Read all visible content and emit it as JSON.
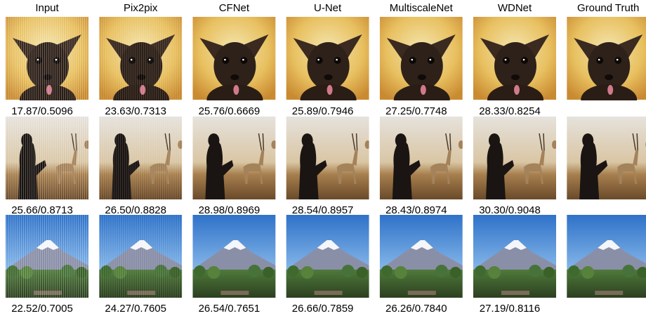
{
  "columns": [
    "Input",
    "Pix2pix",
    "CFNet",
    "U-Net",
    "MultiscaleNet",
    "WDNet",
    "Ground Truth"
  ],
  "rows": [
    {
      "scores": [
        "17.87/0.5096",
        "23.63/0.7313",
        "25.76/0.6669",
        "25.89/0.7946",
        "27.25/0.7748",
        "28.33/0.8254"
      ]
    },
    {
      "scores": [
        "25.66/0.8713",
        "26.50/0.8828",
        "28.98/0.8969",
        "28.54/0.8957",
        "28.43/0.8974",
        "30.30/0.9048"
      ]
    },
    {
      "scores": [
        "22.52/0.7005",
        "24.27/0.7605",
        "26.54/0.7651",
        "26.66/0.7859",
        "26.26/0.7840",
        "27.19/0.8116"
      ]
    }
  ]
}
